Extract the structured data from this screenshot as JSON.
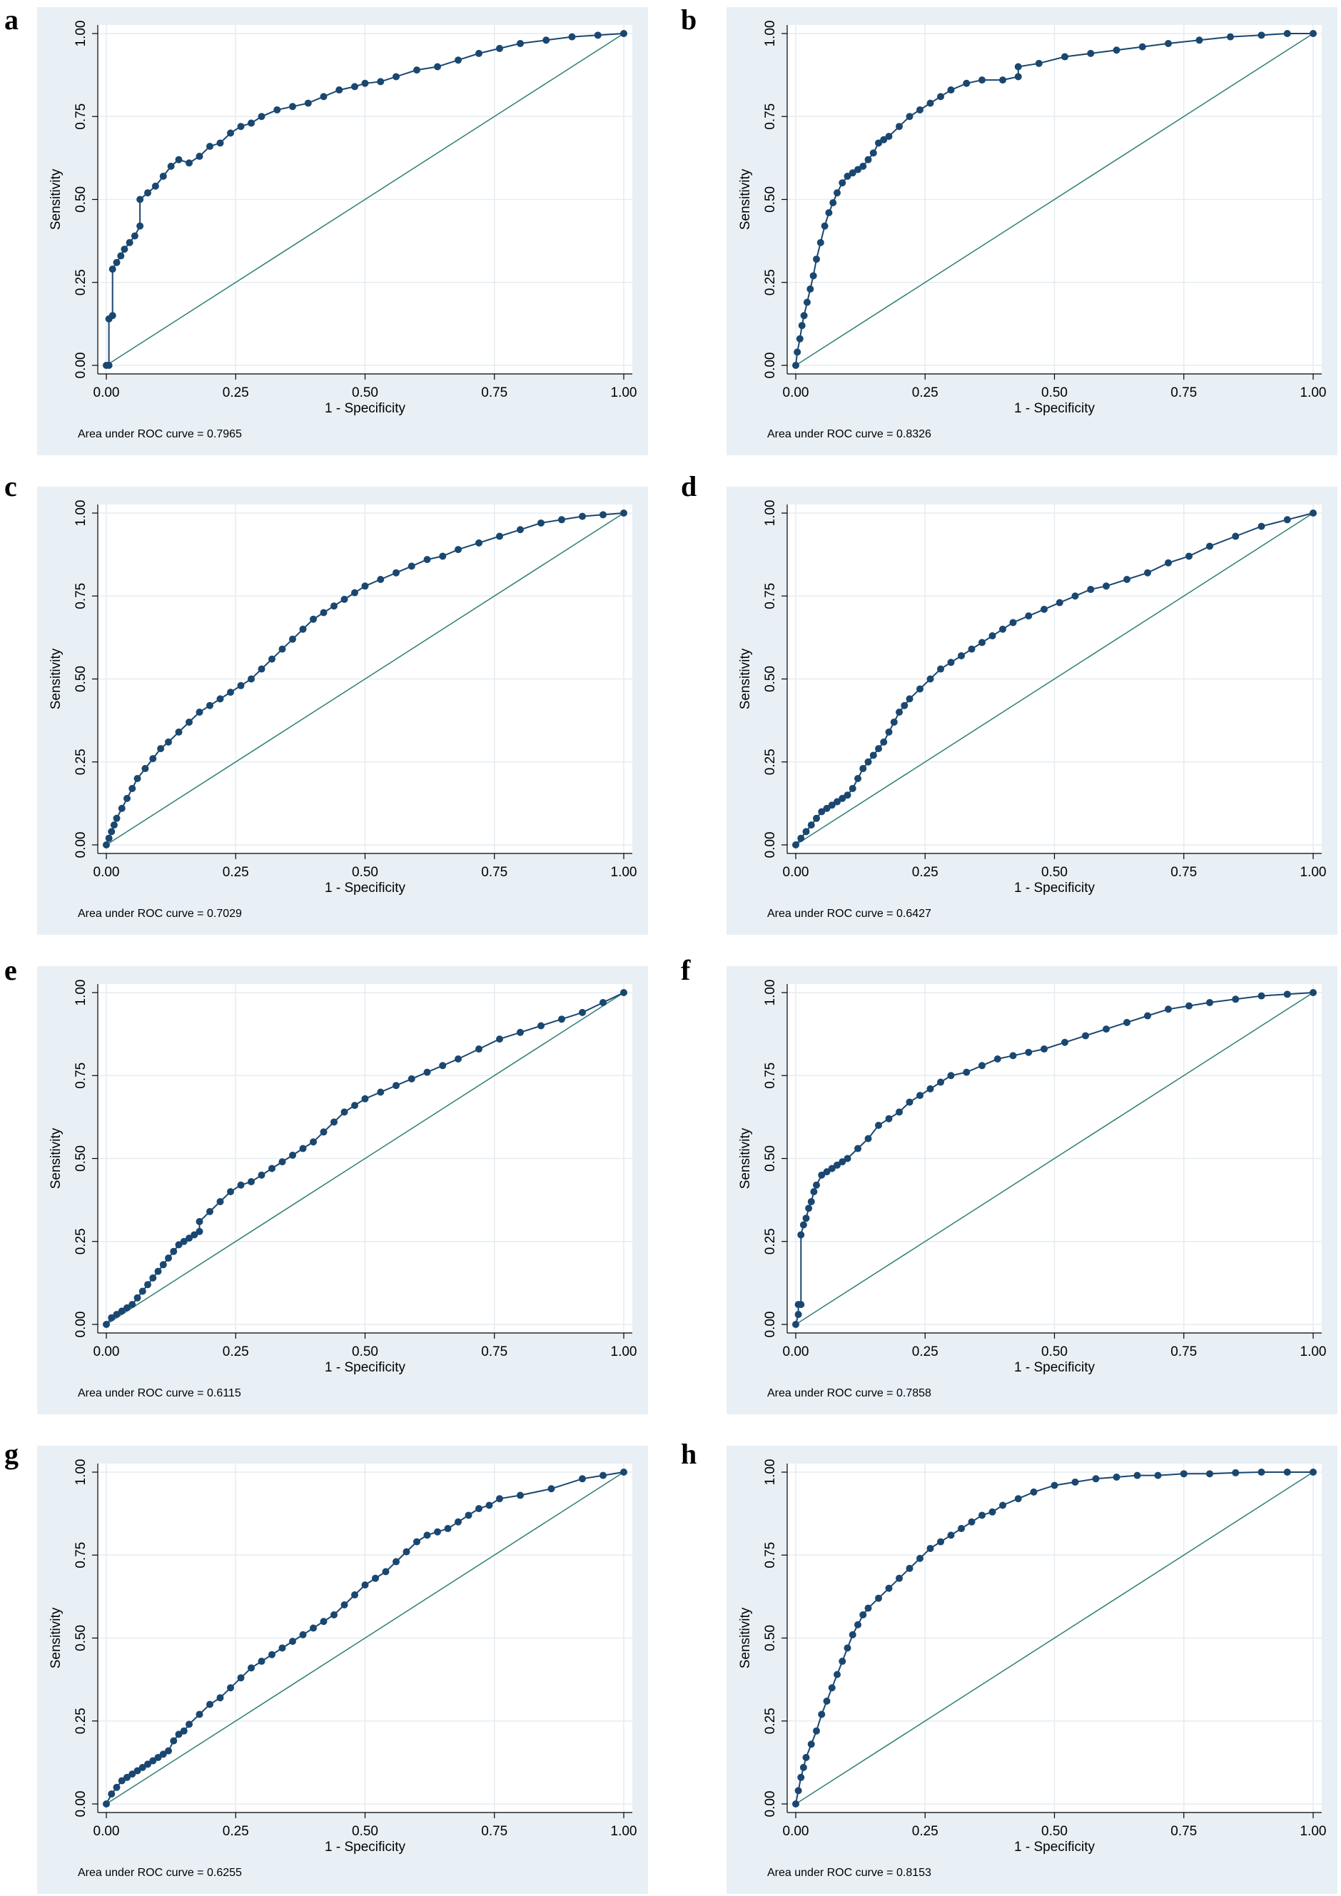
{
  "colors": {
    "panel_bg": "#e8f0f6",
    "plot_bg": "#ffffff",
    "grid": "#e6ecf1",
    "curve": "#1a4770",
    "reference": "#2e7d73",
    "text": "#000000"
  },
  "common": {
    "xlabel": "1 - Specificity",
    "ylabel": "Sensitivity",
    "xticks": [
      "0.00",
      "0.25",
      "0.50",
      "0.75",
      "1.00"
    ],
    "yticks": [
      "0.00",
      "0.25",
      "0.50",
      "0.75",
      "1.00"
    ]
  },
  "chart_data": [
    {
      "panel": "a",
      "type": "line",
      "marker": "circle",
      "reference_line": "diagonal",
      "xlabel": "1 - Specificity",
      "ylabel": "Sensitivity",
      "xlim": [
        0,
        1
      ],
      "ylim": [
        0,
        1
      ],
      "annotation": "Area under ROC curve = 0.7965",
      "series": [
        {
          "x": [
            0,
            0.005,
            0.005,
            0.012,
            0.012,
            0.02,
            0.028,
            0.035,
            0.045,
            0.055,
            0.065,
            0.065,
            0.08,
            0.095,
            0.11,
            0.125,
            0.14,
            0.16,
            0.18,
            0.2,
            0.22,
            0.24,
            0.26,
            0.28,
            0.3,
            0.33,
            0.36,
            0.39,
            0.42,
            0.45,
            0.48,
            0.5,
            0.53,
            0.56,
            0.6,
            0.64,
            0.68,
            0.72,
            0.76,
            0.8,
            0.85,
            0.9,
            0.95,
            1
          ],
          "y": [
            0,
            0,
            0.14,
            0.15,
            0.29,
            0.31,
            0.33,
            0.35,
            0.37,
            0.39,
            0.42,
            0.5,
            0.52,
            0.54,
            0.57,
            0.6,
            0.62,
            0.61,
            0.63,
            0.66,
            0.67,
            0.7,
            0.72,
            0.73,
            0.75,
            0.77,
            0.78,
            0.79,
            0.81,
            0.83,
            0.84,
            0.85,
            0.855,
            0.87,
            0.89,
            0.9,
            0.92,
            0.94,
            0.955,
            0.97,
            0.98,
            0.99,
            0.995,
            1
          ]
        }
      ]
    },
    {
      "panel": "b",
      "type": "line",
      "marker": "circle",
      "reference_line": "diagonal",
      "xlabel": "1 - Specificity",
      "ylabel": "Sensitivity",
      "xlim": [
        0,
        1
      ],
      "ylim": [
        0,
        1
      ],
      "annotation": "Area under ROC curve = 0.8326",
      "series": [
        {
          "x": [
            0,
            0.003,
            0.008,
            0.012,
            0.016,
            0.022,
            0.028,
            0.034,
            0.04,
            0.048,
            0.056,
            0.064,
            0.072,
            0.08,
            0.09,
            0.1,
            0.11,
            0.12,
            0.13,
            0.14,
            0.15,
            0.16,
            0.17,
            0.18,
            0.2,
            0.22,
            0.24,
            0.26,
            0.28,
            0.3,
            0.33,
            0.36,
            0.4,
            0.43,
            0.43,
            0.47,
            0.52,
            0.57,
            0.62,
            0.67,
            0.72,
            0.78,
            0.84,
            0.9,
            0.95,
            1
          ],
          "y": [
            0,
            0.04,
            0.08,
            0.12,
            0.15,
            0.19,
            0.23,
            0.27,
            0.32,
            0.37,
            0.42,
            0.46,
            0.49,
            0.52,
            0.55,
            0.57,
            0.58,
            0.59,
            0.6,
            0.62,
            0.64,
            0.67,
            0.68,
            0.69,
            0.72,
            0.75,
            0.77,
            0.79,
            0.81,
            0.83,
            0.85,
            0.86,
            0.86,
            0.87,
            0.9,
            0.91,
            0.93,
            0.94,
            0.95,
            0.96,
            0.97,
            0.98,
            0.99,
            0.995,
            1,
            1
          ]
        }
      ]
    },
    {
      "panel": "c",
      "type": "line",
      "marker": "circle",
      "reference_line": "diagonal",
      "xlabel": "1 - Specificity",
      "ylabel": "Sensitivity",
      "xlim": [
        0,
        1
      ],
      "ylim": [
        0,
        1
      ],
      "annotation": "Area under ROC curve = 0.7029",
      "series": [
        {
          "x": [
            0,
            0.005,
            0.01,
            0.015,
            0.02,
            0.03,
            0.04,
            0.05,
            0.06,
            0.075,
            0.09,
            0.105,
            0.12,
            0.14,
            0.16,
            0.18,
            0.2,
            0.22,
            0.24,
            0.26,
            0.28,
            0.3,
            0.32,
            0.34,
            0.36,
            0.38,
            0.4,
            0.42,
            0.44,
            0.46,
            0.48,
            0.5,
            0.53,
            0.56,
            0.59,
            0.62,
            0.65,
            0.68,
            0.72,
            0.76,
            0.8,
            0.84,
            0.88,
            0.92,
            0.96,
            1
          ],
          "y": [
            0,
            0.02,
            0.04,
            0.06,
            0.08,
            0.11,
            0.14,
            0.17,
            0.2,
            0.23,
            0.26,
            0.29,
            0.31,
            0.34,
            0.37,
            0.4,
            0.42,
            0.44,
            0.46,
            0.48,
            0.5,
            0.53,
            0.56,
            0.59,
            0.62,
            0.65,
            0.68,
            0.7,
            0.72,
            0.74,
            0.76,
            0.78,
            0.8,
            0.82,
            0.84,
            0.86,
            0.87,
            0.89,
            0.91,
            0.93,
            0.95,
            0.97,
            0.98,
            0.99,
            0.995,
            1
          ]
        }
      ]
    },
    {
      "panel": "d",
      "type": "line",
      "marker": "circle",
      "reference_line": "diagonal",
      "xlabel": "1 - Specificity",
      "ylabel": "Sensitivity",
      "xlim": [
        0,
        1
      ],
      "ylim": [
        0,
        1
      ],
      "annotation": "Area under ROC curve = 0.6427",
      "series": [
        {
          "x": [
            0,
            0.01,
            0.02,
            0.03,
            0.04,
            0.05,
            0.06,
            0.07,
            0.08,
            0.09,
            0.1,
            0.11,
            0.12,
            0.13,
            0.14,
            0.15,
            0.16,
            0.17,
            0.18,
            0.19,
            0.2,
            0.21,
            0.22,
            0.24,
            0.26,
            0.28,
            0.3,
            0.32,
            0.34,
            0.36,
            0.38,
            0.4,
            0.42,
            0.45,
            0.48,
            0.51,
            0.54,
            0.57,
            0.6,
            0.64,
            0.68,
            0.72,
            0.76,
            0.8,
            0.85,
            0.9,
            0.95,
            1
          ],
          "y": [
            0,
            0.02,
            0.04,
            0.06,
            0.08,
            0.1,
            0.11,
            0.12,
            0.13,
            0.14,
            0.15,
            0.17,
            0.2,
            0.23,
            0.25,
            0.27,
            0.29,
            0.31,
            0.34,
            0.37,
            0.4,
            0.42,
            0.44,
            0.47,
            0.5,
            0.53,
            0.55,
            0.57,
            0.59,
            0.61,
            0.63,
            0.65,
            0.67,
            0.69,
            0.71,
            0.73,
            0.75,
            0.77,
            0.78,
            0.8,
            0.82,
            0.85,
            0.87,
            0.9,
            0.93,
            0.96,
            0.98,
            1
          ]
        }
      ]
    },
    {
      "panel": "e",
      "type": "line",
      "marker": "circle",
      "reference_line": "diagonal",
      "xlabel": "1 - Specificity",
      "ylabel": "Sensitivity",
      "xlim": [
        0,
        1
      ],
      "ylim": [
        0,
        1
      ],
      "annotation": "Area under ROC curve = 0.6115",
      "series": [
        {
          "x": [
            0,
            0.01,
            0.02,
            0.03,
            0.04,
            0.05,
            0.06,
            0.07,
            0.08,
            0.09,
            0.1,
            0.11,
            0.12,
            0.13,
            0.14,
            0.15,
            0.16,
            0.17,
            0.18,
            0.18,
            0.2,
            0.22,
            0.24,
            0.26,
            0.28,
            0.3,
            0.32,
            0.34,
            0.36,
            0.38,
            0.4,
            0.42,
            0.44,
            0.46,
            0.48,
            0.5,
            0.53,
            0.56,
            0.59,
            0.62,
            0.65,
            0.68,
            0.72,
            0.76,
            0.8,
            0.84,
            0.88,
            0.92,
            0.96,
            1
          ],
          "y": [
            0,
            0.02,
            0.03,
            0.04,
            0.05,
            0.06,
            0.08,
            0.1,
            0.12,
            0.14,
            0.16,
            0.18,
            0.2,
            0.22,
            0.24,
            0.25,
            0.26,
            0.27,
            0.28,
            0.31,
            0.34,
            0.37,
            0.4,
            0.42,
            0.43,
            0.45,
            0.47,
            0.49,
            0.51,
            0.53,
            0.55,
            0.58,
            0.61,
            0.64,
            0.66,
            0.68,
            0.7,
            0.72,
            0.74,
            0.76,
            0.78,
            0.8,
            0.83,
            0.86,
            0.88,
            0.9,
            0.92,
            0.94,
            0.97,
            1
          ]
        }
      ]
    },
    {
      "panel": "f",
      "type": "line",
      "marker": "circle",
      "reference_line": "diagonal",
      "xlabel": "1 - Specificity",
      "ylabel": "Sensitivity",
      "xlim": [
        0,
        1
      ],
      "ylim": [
        0,
        1
      ],
      "annotation": "Area under ROC curve = 0.7858",
      "series": [
        {
          "x": [
            0,
            0.005,
            0.005,
            0.01,
            0.01,
            0.015,
            0.02,
            0.025,
            0.03,
            0.035,
            0.04,
            0.05,
            0.06,
            0.07,
            0.08,
            0.09,
            0.1,
            0.12,
            0.14,
            0.16,
            0.18,
            0.2,
            0.22,
            0.24,
            0.26,
            0.28,
            0.3,
            0.33,
            0.36,
            0.39,
            0.42,
            0.45,
            0.48,
            0.52,
            0.56,
            0.6,
            0.64,
            0.68,
            0.72,
            0.76,
            0.8,
            0.85,
            0.9,
            0.95,
            1
          ],
          "y": [
            0,
            0.03,
            0.06,
            0.06,
            0.27,
            0.3,
            0.32,
            0.35,
            0.37,
            0.4,
            0.42,
            0.45,
            0.46,
            0.47,
            0.48,
            0.49,
            0.5,
            0.53,
            0.56,
            0.6,
            0.62,
            0.64,
            0.67,
            0.69,
            0.71,
            0.73,
            0.75,
            0.76,
            0.78,
            0.8,
            0.81,
            0.82,
            0.83,
            0.85,
            0.87,
            0.89,
            0.91,
            0.93,
            0.95,
            0.96,
            0.97,
            0.98,
            0.99,
            0.995,
            1
          ]
        }
      ]
    },
    {
      "panel": "g",
      "type": "line",
      "marker": "circle",
      "reference_line": "diagonal",
      "xlabel": "1 - Specificity",
      "ylabel": "Sensitivity",
      "xlim": [
        0,
        1
      ],
      "ylim": [
        0,
        1
      ],
      "annotation": "Area under ROC curve = 0.6255",
      "series": [
        {
          "x": [
            0,
            0.01,
            0.02,
            0.03,
            0.04,
            0.05,
            0.06,
            0.07,
            0.08,
            0.09,
            0.1,
            0.11,
            0.12,
            0.13,
            0.14,
            0.15,
            0.16,
            0.18,
            0.2,
            0.22,
            0.24,
            0.26,
            0.28,
            0.3,
            0.32,
            0.34,
            0.36,
            0.38,
            0.4,
            0.42,
            0.44,
            0.46,
            0.48,
            0.5,
            0.52,
            0.54,
            0.56,
            0.58,
            0.6,
            0.62,
            0.64,
            0.66,
            0.68,
            0.7,
            0.72,
            0.74,
            0.76,
            0.8,
            0.86,
            0.92,
            0.96,
            1
          ],
          "y": [
            0,
            0.03,
            0.05,
            0.07,
            0.08,
            0.09,
            0.1,
            0.11,
            0.12,
            0.13,
            0.14,
            0.15,
            0.16,
            0.19,
            0.21,
            0.22,
            0.24,
            0.27,
            0.3,
            0.32,
            0.35,
            0.38,
            0.41,
            0.43,
            0.45,
            0.47,
            0.49,
            0.51,
            0.53,
            0.55,
            0.57,
            0.6,
            0.63,
            0.66,
            0.68,
            0.7,
            0.73,
            0.76,
            0.79,
            0.81,
            0.82,
            0.83,
            0.85,
            0.87,
            0.89,
            0.9,
            0.92,
            0.93,
            0.95,
            0.98,
            0.99,
            1
          ]
        }
      ]
    },
    {
      "panel": "h",
      "type": "line",
      "marker": "circle",
      "reference_line": "diagonal",
      "xlabel": "1 - Specificity",
      "ylabel": "Sensitivity",
      "xlim": [
        0,
        1
      ],
      "ylim": [
        0,
        1
      ],
      "annotation": "Area under ROC curve = 0.8153",
      "series": [
        {
          "x": [
            0,
            0.005,
            0.01,
            0.015,
            0.02,
            0.03,
            0.04,
            0.05,
            0.06,
            0.07,
            0.08,
            0.09,
            0.1,
            0.11,
            0.12,
            0.13,
            0.14,
            0.16,
            0.18,
            0.2,
            0.22,
            0.24,
            0.26,
            0.28,
            0.3,
            0.32,
            0.34,
            0.36,
            0.38,
            0.4,
            0.43,
            0.46,
            0.5,
            0.54,
            0.58,
            0.62,
            0.66,
            0.7,
            0.75,
            0.8,
            0.85,
            0.9,
            0.95,
            1
          ],
          "y": [
            0,
            0.04,
            0.08,
            0.11,
            0.14,
            0.18,
            0.22,
            0.27,
            0.31,
            0.35,
            0.39,
            0.43,
            0.47,
            0.51,
            0.54,
            0.57,
            0.59,
            0.62,
            0.65,
            0.68,
            0.71,
            0.74,
            0.77,
            0.79,
            0.81,
            0.83,
            0.85,
            0.87,
            0.88,
            0.9,
            0.92,
            0.94,
            0.96,
            0.97,
            0.98,
            0.985,
            0.99,
            0.99,
            0.995,
            0.995,
            0.998,
            1,
            1,
            1
          ]
        }
      ]
    }
  ]
}
